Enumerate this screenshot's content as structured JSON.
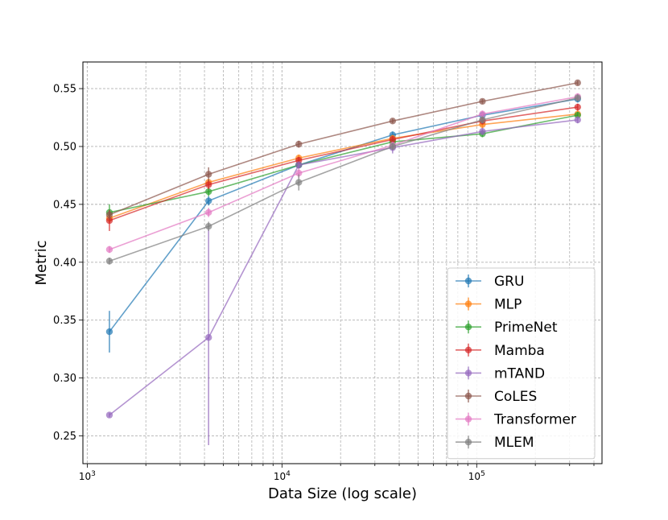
{
  "chart_data": {
    "type": "line",
    "title": "",
    "xlabel": "Data Size (log scale)",
    "ylabel": "Metric",
    "xscale": "log",
    "xlim": [
      950,
      440000
    ],
    "ylim": [
      0.226,
      0.573
    ],
    "grid": true,
    "legend_position": "lower-right",
    "x": [
      1300,
      4200,
      12200,
      37000,
      107000,
      330000
    ],
    "x_tick_labels": [
      {
        "value": 1000,
        "base": "10",
        "exp": "3"
      },
      {
        "value": 10000,
        "base": "10",
        "exp": "4"
      },
      {
        "value": 100000,
        "base": "10",
        "exp": "5"
      }
    ],
    "y_ticks": [
      "0.25",
      "0.30",
      "0.35",
      "0.40",
      "0.45",
      "0.50",
      "0.55"
    ],
    "series": [
      {
        "name": "GRU",
        "color": "#1f77b4",
        "values": [
          0.34,
          0.453,
          0.484,
          0.51,
          0.527,
          0.541
        ],
        "errors": [
          0.018,
          0.004,
          0.003,
          0.003,
          0.003,
          0.003
        ]
      },
      {
        "name": "MLP",
        "color": "#ff7f0e",
        "values": [
          0.438,
          0.469,
          0.49,
          0.507,
          0.519,
          0.528
        ],
        "errors": [
          0.004,
          0.003,
          0.003,
          0.003,
          0.003,
          0.003
        ]
      },
      {
        "name": "PrimeNet",
        "color": "#2ca02c",
        "values": [
          0.443,
          0.461,
          0.484,
          0.504,
          0.511,
          0.527
        ],
        "errors": [
          0.007,
          0.004,
          0.003,
          0.003,
          0.003,
          0.003
        ]
      },
      {
        "name": "Mamba",
        "color": "#d62728",
        "values": [
          0.436,
          0.467,
          0.488,
          0.506,
          0.522,
          0.534
        ],
        "errors": [
          0.009,
          0.004,
          0.003,
          0.003,
          0.003,
          0.003
        ]
      },
      {
        "name": "mTAND",
        "color": "#9467bd",
        "values": [
          0.268,
          0.335,
          0.484,
          0.499,
          0.513,
          0.523
        ],
        "errors": [
          0.002,
          0.093,
          0.003,
          0.005,
          0.003,
          0.003
        ]
      },
      {
        "name": "CoLES",
        "color": "#8c564b",
        "values": [
          0.441,
          0.476,
          0.502,
          0.522,
          0.539,
          0.555
        ],
        "errors": [
          0.004,
          0.006,
          0.003,
          0.002,
          0.002,
          0.002
        ]
      },
      {
        "name": "Transformer",
        "color": "#e377c2",
        "values": [
          0.411,
          0.443,
          0.477,
          0.501,
          0.528,
          0.543
        ],
        "errors": [
          0.003,
          0.004,
          0.004,
          0.003,
          0.003,
          0.003
        ]
      },
      {
        "name": "MLEM",
        "color": "#7f7f7f",
        "values": [
          0.401,
          0.431,
          0.469,
          0.5,
          0.523,
          0.542
        ],
        "errors": [
          0.003,
          0.004,
          0.007,
          0.003,
          0.003,
          0.003
        ]
      }
    ]
  }
}
